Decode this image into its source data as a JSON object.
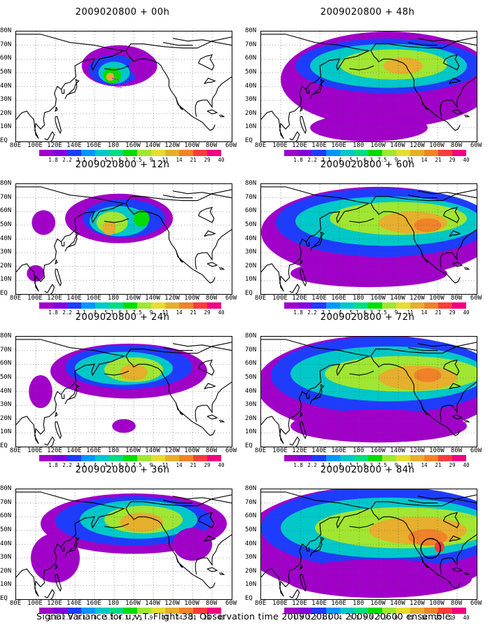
{
  "panels": [
    {
      "title": "2009020800 + 00h",
      "stage": 0,
      "marker": "none"
    },
    {
      "title": "2009020800 + 12h",
      "stage": 1,
      "marker": "none"
    },
    {
      "title": "2009020800 + 24h",
      "stage": 2,
      "marker": "none"
    },
    {
      "title": "2009020800 + 36h",
      "stage": 3,
      "marker": "none"
    },
    {
      "title": "2009020800 + 48h",
      "stage": 4,
      "marker": "none"
    },
    {
      "title": "2009020800 + 60h",
      "stage": 5,
      "marker": "none"
    },
    {
      "title": "2009020800 + 72h",
      "stage": 6,
      "marker": "none"
    },
    {
      "title": "2009020800 + 84h",
      "stage": 7,
      "marker": "circle"
    }
  ],
  "y_ticks": [
    "80N",
    "70N",
    "60N",
    "50N",
    "40N",
    "30N",
    "20N",
    "10N",
    "EQ"
  ],
  "x_ticks": [
    "80E",
    "100E",
    "120E",
    "140E",
    "160E",
    "180",
    "160W",
    "140W",
    "120W",
    "100W",
    "80W",
    "60W"
  ],
  "colorbar": {
    "labels": [
      "1.8",
      "2.2",
      "3.1",
      "4",
      "5.1",
      "6.3",
      "7.5",
      "9",
      "11",
      "14",
      "21",
      "29",
      "40"
    ],
    "colors": [
      "#a000c8",
      "#8200dc",
      "#1e3cff",
      "#0096ff",
      "#00c8c8",
      "#00dc82",
      "#00dc00",
      "#a0e632",
      "#e6dc32",
      "#e6af2d",
      "#f08228",
      "#fa3c3c",
      "#f00082"
    ]
  },
  "caption": "Signal Variance for u,v,T. Flight 38. Observation time 2009020800. 2009020600 ensemble."
}
